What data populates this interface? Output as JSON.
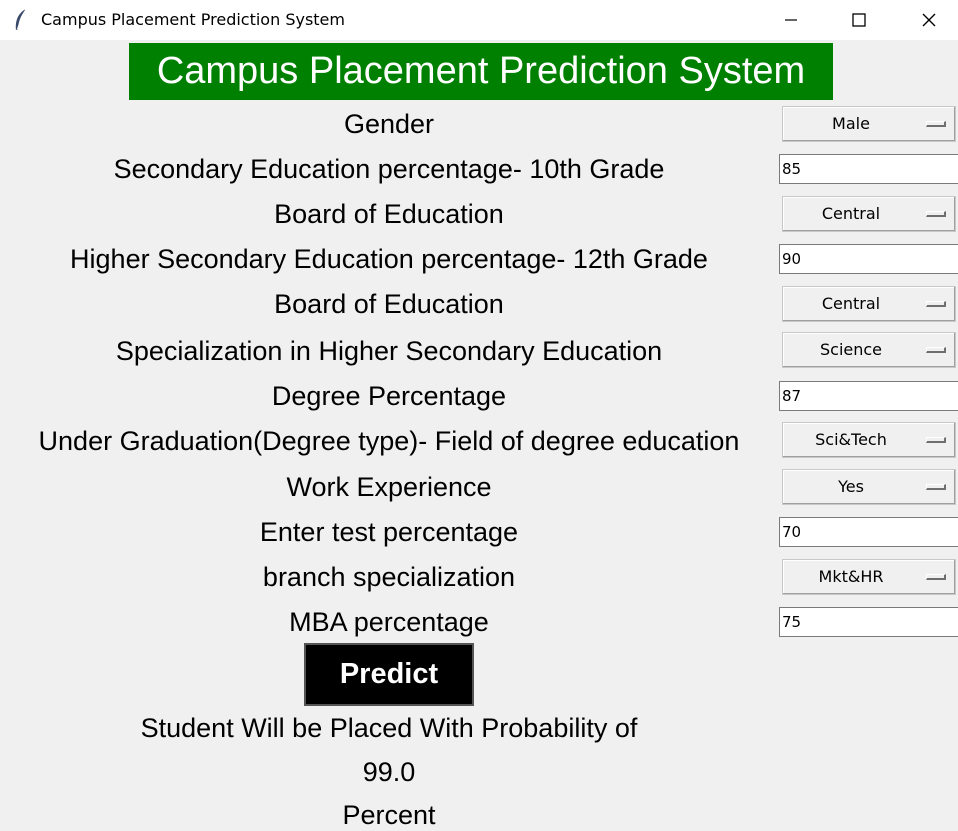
{
  "window": {
    "title": "Campus Placement Prediction System"
  },
  "header": {
    "title": "Campus Placement Prediction System",
    "color": "#008000"
  },
  "form": {
    "gender": {
      "label": "Gender",
      "value": "Male"
    },
    "ssc_p": {
      "label": "Secondary Education percentage- 10th Grade",
      "value": "85"
    },
    "ssc_b": {
      "label": "Board of Education",
      "value": "Central"
    },
    "hsc_p": {
      "label": "Higher Secondary Education percentage- 12th Grade",
      "value": "90"
    },
    "hsc_b": {
      "label": "Board of Education",
      "value": "Central"
    },
    "hsc_s": {
      "label": "Specialization in Higher Secondary Education",
      "value": "Science"
    },
    "degree_p": {
      "label": "Degree Percentage",
      "value": "87"
    },
    "degree_t": {
      "label": "Under Graduation(Degree type)- Field of degree education",
      "value": "Sci&Tech"
    },
    "workex": {
      "label": "Work Experience",
      "value": "Yes"
    },
    "etest_p": {
      "label": "Enter test percentage",
      "value": "70"
    },
    "specialisation": {
      "label": "branch specialization",
      "value": "Mkt&HR"
    },
    "mba_p": {
      "label": "MBA percentage",
      "value": "75"
    }
  },
  "predict_button": {
    "label": "Predict"
  },
  "result": {
    "line1": "Student Will be Placed With Probability of",
    "probability": "99.0",
    "line3": "Percent"
  }
}
